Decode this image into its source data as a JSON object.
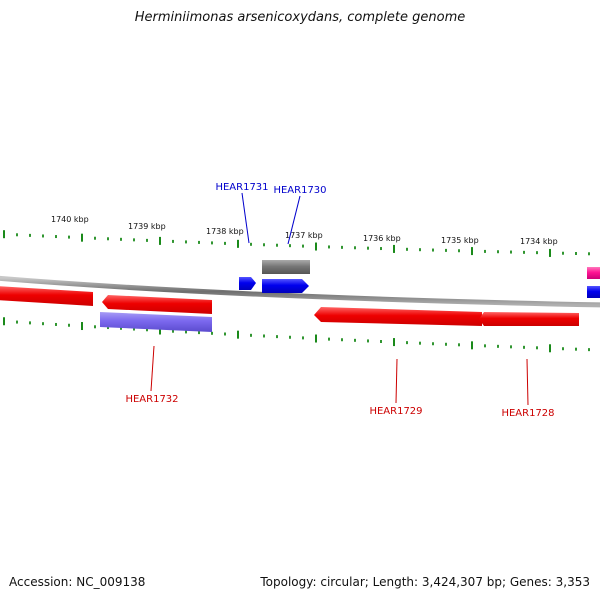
{
  "title": "Herminiimonas arsenicoxydans, complete genome",
  "footer": {
    "accession": "Accession: NC_009138",
    "summary": "Topology: circular; Length: 3,424,307 bp; Genes: 3,353"
  },
  "colors": {
    "backbone": "#8a8a8a",
    "tick": "#1a8a1a",
    "forward_gene": "#0000ee",
    "reverse_gene": "#ee0000",
    "rna_gene": "#7b68ee",
    "pseudo_gene": "#777777",
    "other_gene": "#ff1493",
    "forward_label": "#0000cc",
    "reverse_label": "#cc0000"
  },
  "scale": {
    "unit": "kbp",
    "labels": [
      "1740 kbp",
      "1739 kbp",
      "1738 kbp",
      "1737 kbp",
      "1736 kbp",
      "1735 kbp",
      "1734 kbp"
    ]
  },
  "genes": [
    {
      "label": "HEAR1731",
      "strand": "forward"
    },
    {
      "label": "HEAR1730",
      "strand": "forward"
    },
    {
      "label": "HEAR1732",
      "strand": "reverse"
    },
    {
      "label": "HEAR1729",
      "strand": "reverse"
    },
    {
      "label": "HEAR1728",
      "strand": "reverse"
    }
  ]
}
